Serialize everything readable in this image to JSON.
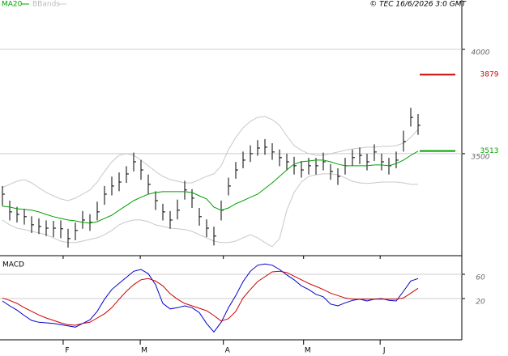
{
  "chart_data": [
    {
      "type": "ohlc",
      "legend": {
        "ma": "MA20",
        "bands": "BBands"
      },
      "source": "© TEC 16/6/2026 3:0 GMT",
      "x": [
        0,
        1,
        2,
        3,
        4,
        5,
        6,
        7,
        8,
        9,
        10,
        11,
        12,
        13,
        14,
        15,
        16,
        17,
        18,
        19,
        20,
        21,
        22,
        23,
        24,
        25,
        26,
        27,
        28,
        29,
        30,
        31,
        32,
        33,
        34,
        35,
        36,
        37,
        38,
        39,
        40,
        41,
        42,
        43,
        44,
        45,
        46,
        47,
        48,
        49,
        50,
        51,
        52,
        53,
        54,
        55,
        56,
        57
      ],
      "xlim": [
        -0.333,
        63
      ],
      "ylim": [
        3015,
        4190
      ],
      "yticks": [
        3500,
        4000
      ],
      "grid": true,
      "price": {
        "color": "#000000",
        "high": [
          3345,
          3275,
          3245,
          3236,
          3200,
          3190,
          3180,
          3178,
          3180,
          3140,
          3170,
          3225,
          3210,
          3270,
          3345,
          3390,
          3410,
          3440,
          3505,
          3470,
          3400,
          3320,
          3260,
          3225,
          3280,
          3370,
          3330,
          3240,
          3185,
          3150,
          3275,
          3385,
          3460,
          3510,
          3540,
          3565,
          3570,
          3550,
          3520,
          3500,
          3485,
          3465,
          3480,
          3480,
          3505,
          3450,
          3430,
          3480,
          3520,
          3530,
          3500,
          3545,
          3500,
          3480,
          3510,
          3610,
          3720,
          3690
        ],
        "low": [
          3250,
          3180,
          3170,
          3160,
          3120,
          3115,
          3105,
          3100,
          3095,
          3050,
          3085,
          3140,
          3130,
          3180,
          3255,
          3300,
          3320,
          3360,
          3415,
          3375,
          3305,
          3230,
          3180,
          3140,
          3185,
          3280,
          3240,
          3155,
          3100,
          3060,
          3180,
          3300,
          3380,
          3430,
          3460,
          3490,
          3495,
          3470,
          3440,
          3420,
          3400,
          3385,
          3400,
          3400,
          3420,
          3375,
          3350,
          3400,
          3440,
          3450,
          3420,
          3465,
          3420,
          3400,
          3430,
          3510,
          3630,
          3590
        ],
        "close": [
          3306,
          3221,
          3209,
          3198,
          3159,
          3151,
          3143,
          3143,
          3140,
          3093,
          3132,
          3182,
          3171,
          3221,
          3306,
          3345,
          3364,
          3403,
          3461,
          3422,
          3353,
          3275,
          3221,
          3182,
          3229,
          3326,
          3287,
          3198,
          3143,
          3105,
          3229,
          3345,
          3422,
          3469,
          3500,
          3527,
          3531,
          3508,
          3481,
          3461,
          3442,
          3422,
          3442,
          3442,
          3461,
          3415,
          3391,
          3442,
          3481,
          3492,
          3461,
          3508,
          3461,
          3442,
          3469,
          3558,
          3674,
          3636
        ]
      },
      "ma": {
        "color": "#00a000",
        "values": [
          3248,
          3244,
          3236,
          3233,
          3229,
          3221,
          3209,
          3198,
          3190,
          3182,
          3178,
          3171,
          3167,
          3174,
          3190,
          3205,
          3229,
          3252,
          3275,
          3291,
          3306,
          3314,
          3318,
          3318,
          3318,
          3318,
          3314,
          3298,
          3283,
          3244,
          3229,
          3240,
          3260,
          3275,
          3291,
          3306,
          3333,
          3360,
          3391,
          3422,
          3450,
          3461,
          3465,
          3469,
          3469,
          3461,
          3450,
          3442,
          3442,
          3442,
          3442,
          3446,
          3446,
          3442,
          3453,
          3469,
          3492,
          3512
        ]
      },
      "bands": {
        "color": "#c8c8c8",
        "upper": [
          3337,
          3353,
          3368,
          3376,
          3360,
          3337,
          3314,
          3298,
          3283,
          3275,
          3287,
          3306,
          3326,
          3364,
          3415,
          3461,
          3492,
          3500,
          3492,
          3469,
          3442,
          3415,
          3391,
          3376,
          3368,
          3360,
          3360,
          3376,
          3391,
          3403,
          3442,
          3519,
          3578,
          3624,
          3655,
          3674,
          3678,
          3663,
          3636,
          3585,
          3539,
          3516,
          3500,
          3492,
          3492,
          3500,
          3508,
          3516,
          3523,
          3527,
          3531,
          3531,
          3535,
          3535,
          3539,
          3550,
          3578,
          3616
        ],
        "lower": [
          3182,
          3159,
          3143,
          3136,
          3128,
          3120,
          3112,
          3097,
          3081,
          3074,
          3074,
          3081,
          3089,
          3097,
          3112,
          3132,
          3159,
          3174,
          3182,
          3182,
          3174,
          3159,
          3151,
          3143,
          3140,
          3136,
          3128,
          3112,
          3097,
          3081,
          3074,
          3074,
          3081,
          3097,
          3112,
          3097,
          3074,
          3054,
          3093,
          3229,
          3314,
          3364,
          3391,
          3399,
          3403,
          3403,
          3399,
          3384,
          3368,
          3360,
          3357,
          3360,
          3364,
          3364,
          3364,
          3360,
          3353,
          3353
        ]
      },
      "levels": [
        {
          "value": 3879,
          "color": "#cc0000"
        },
        {
          "value": 3513,
          "color": "#00a000"
        }
      ]
    },
    {
      "type": "line",
      "title": "MACD",
      "x": [
        0,
        1,
        2,
        3,
        4,
        5,
        6,
        7,
        8,
        9,
        10,
        11,
        12,
        13,
        14,
        15,
        16,
        17,
        18,
        19,
        20,
        21,
        22,
        23,
        24,
        25,
        26,
        27,
        28,
        29,
        30,
        31,
        32,
        33,
        34,
        35,
        36,
        37,
        38,
        39,
        40,
        41,
        42,
        43,
        44,
        45,
        46,
        47,
        48,
        49,
        50,
        51,
        52,
        53,
        54,
        55,
        56,
        57
      ],
      "xlim": [
        -0.333,
        63
      ],
      "xticks": [
        {
          "value": 8.33,
          "label": "F"
        },
        {
          "value": 18.9,
          "label": "M"
        },
        {
          "value": 30.3,
          "label": "A"
        },
        {
          "value": 41.3,
          "label": "M"
        },
        {
          "value": 51.8,
          "label": "J"
        }
      ],
      "ylim": [
        -48,
        88
      ],
      "yticks": [
        20,
        60
      ],
      "grid": true,
      "series": [
        {
          "color": "#0000cc",
          "values": [
            16,
            8,
            1,
            -8,
            -16,
            -19,
            -20,
            -21,
            -23,
            -25,
            -27,
            -21,
            -15,
            -1,
            19,
            35,
            45,
            55,
            65,
            68,
            61,
            43,
            12,
            3,
            5,
            8,
            5,
            -3,
            -21,
            -35,
            -19,
            5,
            25,
            48,
            65,
            75,
            77,
            75,
            68,
            59,
            51,
            41,
            35,
            27,
            23,
            11,
            8,
            13,
            17,
            19,
            16,
            19,
            20,
            17,
            16,
            32,
            49,
            53
          ]
        },
        {
          "color": "#cc0000",
          "values": [
            21,
            17,
            12,
            5,
            -1,
            -7,
            -12,
            -16,
            -20,
            -23,
            -24,
            -21,
            -19,
            -12,
            -5,
            5,
            19,
            32,
            43,
            51,
            53,
            49,
            41,
            28,
            19,
            12,
            8,
            4,
            0,
            -8,
            -17,
            -13,
            -1,
            21,
            35,
            48,
            56,
            64,
            65,
            63,
            57,
            51,
            45,
            40,
            35,
            29,
            25,
            21,
            19,
            19,
            19,
            19,
            19,
            19,
            19,
            21,
            29,
            37
          ]
        }
      ]
    }
  ]
}
